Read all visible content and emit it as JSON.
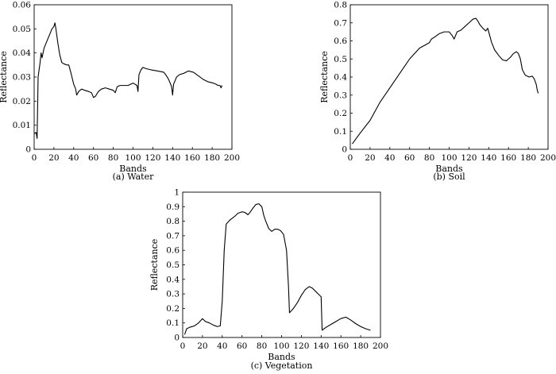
{
  "chart_data": [
    {
      "type": "line",
      "caption": "(a) Water",
      "xlabel": "Bands",
      "ylabel": "Reflectance",
      "xlim": [
        0,
        200
      ],
      "ylim": [
        0,
        0.06
      ],
      "xticks": [
        "0",
        "20",
        "40",
        "60",
        "80",
        "100",
        "120",
        "140",
        "160",
        "180",
        "200"
      ],
      "yticks": [
        "0",
        "0.01",
        "0.02",
        "0.03",
        "0.04",
        "0.05",
        "0.06"
      ],
      "grid": false,
      "series": [
        {
          "points": [
            [
              0,
              0.0065
            ],
            [
              2,
              0.007
            ],
            [
              3,
              0.0045
            ],
            [
              4,
              0.03
            ],
            [
              6,
              0.036
            ],
            [
              7,
              0.04
            ],
            [
              8,
              0.038
            ],
            [
              10,
              0.042
            ],
            [
              12,
              0.044
            ],
            [
              14,
              0.046
            ],
            [
              16,
              0.048
            ],
            [
              18,
              0.05
            ],
            [
              20,
              0.051
            ],
            [
              21,
              0.0525
            ],
            [
              22,
              0.05
            ],
            [
              24,
              0.044
            ],
            [
              26,
              0.039
            ],
            [
              28,
              0.036
            ],
            [
              30,
              0.0355
            ],
            [
              33,
              0.035
            ],
            [
              35,
              0.035
            ],
            [
              37,
              0.032
            ],
            [
              40,
              0.027
            ],
            [
              42,
              0.025
            ],
            [
              43,
              0.0225
            ],
            [
              45,
              0.024
            ],
            [
              48,
              0.025
            ],
            [
              51,
              0.0245
            ],
            [
              55,
              0.024
            ],
            [
              58,
              0.0235
            ],
            [
              60,
              0.0215
            ],
            [
              62,
              0.022
            ],
            [
              65,
              0.024
            ],
            [
              68,
              0.025
            ],
            [
              72,
              0.0255
            ],
            [
              76,
              0.025
            ],
            [
              80,
              0.0245
            ],
            [
              82,
              0.0235
            ],
            [
              84,
              0.026
            ],
            [
              87,
              0.0265
            ],
            [
              91,
              0.0265
            ],
            [
              95,
              0.0265
            ],
            [
              100,
              0.0275
            ],
            [
              104,
              0.0265
            ],
            [
              105,
              0.024
            ],
            [
              106,
              0.031
            ],
            [
              108,
              0.033
            ],
            [
              110,
              0.034
            ],
            [
              113,
              0.0335
            ],
            [
              118,
              0.033
            ],
            [
              125,
              0.0325
            ],
            [
              131,
              0.032
            ],
            [
              133,
              0.031
            ],
            [
              136,
              0.029
            ],
            [
              139,
              0.026
            ],
            [
              140,
              0.0225
            ],
            [
              141,
              0.027
            ],
            [
              144,
              0.03
            ],
            [
              147,
              0.031
            ],
            [
              151,
              0.0315
            ],
            [
              156,
              0.0325
            ],
            [
              161,
              0.032
            ],
            [
              166,
              0.0305
            ],
            [
              171,
              0.029
            ],
            [
              176,
              0.028
            ],
            [
              181,
              0.0275
            ],
            [
              184,
              0.027
            ],
            [
              186,
              0.0265
            ],
            [
              188,
              0.0265
            ],
            [
              189,
              0.0255
            ],
            [
              190,
              0.0265
            ]
          ]
        }
      ]
    },
    {
      "type": "line",
      "caption": "(b) Soil",
      "xlabel": "Bands",
      "ylabel": "Reflectance",
      "xlim": [
        0,
        200
      ],
      "ylim": [
        0,
        0.8
      ],
      "xticks": [
        "0",
        "20",
        "40",
        "60",
        "80",
        "100",
        "120",
        "140",
        "160",
        "180",
        "200"
      ],
      "yticks": [
        "0",
        "0.1",
        "0.2",
        "0.3",
        "0.4",
        "0.5",
        "0.6",
        "0.7",
        "0.8"
      ],
      "grid": false,
      "series": [
        {
          "points": [
            [
              2,
              0.03
            ],
            [
              10,
              0.09
            ],
            [
              20,
              0.16
            ],
            [
              30,
              0.26
            ],
            [
              40,
              0.34
            ],
            [
              50,
              0.42
            ],
            [
              60,
              0.5
            ],
            [
              70,
              0.56
            ],
            [
              80,
              0.59
            ],
            [
              82,
              0.61
            ],
            [
              85,
              0.62
            ],
            [
              90,
              0.64
            ],
            [
              95,
              0.65
            ],
            [
              100,
              0.65
            ],
            [
              103,
              0.63
            ],
            [
              105,
              0.61
            ],
            [
              108,
              0.65
            ],
            [
              112,
              0.66
            ],
            [
              116,
              0.68
            ],
            [
              120,
              0.7
            ],
            [
              124,
              0.72
            ],
            [
              127,
              0.725
            ],
            [
              129,
              0.71
            ],
            [
              131,
              0.69
            ],
            [
              134,
              0.67
            ],
            [
              137,
              0.655
            ],
            [
              139,
              0.67
            ],
            [
              141,
              0.63
            ],
            [
              143,
              0.59
            ],
            [
              146,
              0.55
            ],
            [
              150,
              0.52
            ],
            [
              154,
              0.495
            ],
            [
              158,
              0.49
            ],
            [
              162,
              0.51
            ],
            [
              165,
              0.53
            ],
            [
              168,
              0.54
            ],
            [
              170,
              0.53
            ],
            [
              172,
              0.5
            ],
            [
              174,
              0.44
            ],
            [
              177,
              0.41
            ],
            [
              181,
              0.4
            ],
            [
              184,
              0.405
            ],
            [
              186,
              0.39
            ],
            [
              188,
              0.36
            ],
            [
              189,
              0.33
            ],
            [
              190,
              0.31
            ]
          ]
        }
      ]
    },
    {
      "type": "line",
      "caption": "(c) Vegetation",
      "xlabel": "Bands",
      "ylabel": "Reflectance",
      "xlim": [
        0,
        200
      ],
      "ylim": [
        0,
        1
      ],
      "xticks": [
        "0",
        "20",
        "40",
        "60",
        "80",
        "100",
        "120",
        "140",
        "160",
        "180",
        "200"
      ],
      "yticks": [
        "0",
        "0.1",
        "0.2",
        "0.3",
        "0.4",
        "0.5",
        "0.6",
        "0.7",
        "0.8",
        "0.9",
        "1"
      ],
      "grid": false,
      "series": [
        {
          "points": [
            [
              2,
              0.02
            ],
            [
              4,
              0.06
            ],
            [
              7,
              0.07
            ],
            [
              12,
              0.08
            ],
            [
              16,
              0.1
            ],
            [
              20,
              0.13
            ],
            [
              23,
              0.11
            ],
            [
              27,
              0.1
            ],
            [
              31,
              0.085
            ],
            [
              35,
              0.075
            ],
            [
              38,
              0.08
            ],
            [
              40,
              0.25
            ],
            [
              42,
              0.6
            ],
            [
              44,
              0.78
            ],
            [
              48,
              0.81
            ],
            [
              52,
              0.83
            ],
            [
              56,
              0.855
            ],
            [
              60,
              0.865
            ],
            [
              63,
              0.86
            ],
            [
              66,
              0.845
            ],
            [
              68,
              0.86
            ],
            [
              71,
              0.89
            ],
            [
              74,
              0.915
            ],
            [
              77,
              0.92
            ],
            [
              80,
              0.9
            ],
            [
              82,
              0.84
            ],
            [
              84,
              0.8
            ],
            [
              87,
              0.75
            ],
            [
              90,
              0.73
            ],
            [
              93,
              0.745
            ],
            [
              96,
              0.745
            ],
            [
              99,
              0.735
            ],
            [
              102,
              0.71
            ],
            [
              105,
              0.6
            ],
            [
              107,
              0.35
            ],
            [
              108,
              0.17
            ],
            [
              112,
              0.2
            ],
            [
              116,
              0.24
            ],
            [
              120,
              0.29
            ],
            [
              124,
              0.33
            ],
            [
              128,
              0.35
            ],
            [
              131,
              0.34
            ],
            [
              134,
              0.32
            ],
            [
              137,
              0.3
            ],
            [
              140,
              0.28
            ],
            [
              141,
              0.05
            ],
            [
              145,
              0.07
            ],
            [
              150,
              0.09
            ],
            [
              155,
              0.11
            ],
            [
              160,
              0.13
            ],
            [
              165,
              0.14
            ],
            [
              170,
              0.12
            ],
            [
              175,
              0.095
            ],
            [
              180,
              0.075
            ],
            [
              185,
              0.06
            ],
            [
              190,
              0.05
            ]
          ]
        }
      ]
    }
  ]
}
